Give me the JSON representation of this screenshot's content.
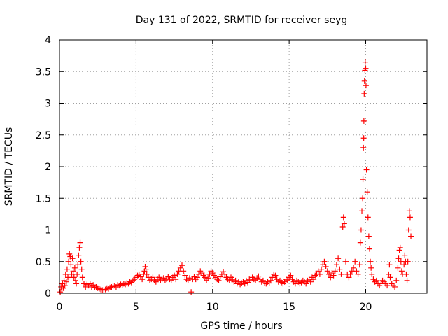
{
  "chart_data": {
    "type": "scatter",
    "title": "Day 131 of 2022, SRMTID for receiver seyg",
    "xlabel": "GPS time / hours",
    "ylabel": "SRMTID / TECUs",
    "xlim": [
      0,
      24
    ],
    "ylim": [
      0,
      4
    ],
    "x_ticks": [
      0,
      5,
      10,
      15,
      20
    ],
    "y_ticks": [
      0,
      0.5,
      1,
      1.5,
      2,
      2.5,
      3,
      3.5,
      4
    ],
    "x_tick_labels": [
      "0",
      "5",
      "10",
      "15",
      "20"
    ],
    "y_tick_labels": [
      "0",
      "0.5",
      "1",
      "1.5",
      "2",
      "2.5",
      "3",
      "3.5",
      "4"
    ],
    "grid": true,
    "marker": "+",
    "color": "#ff0000",
    "series": [
      {
        "name": "SRMTID",
        "points": [
          [
            0.05,
            0.02
          ],
          [
            0.1,
            0.1
          ],
          [
            0.15,
            0.05
          ],
          [
            0.2,
            0.15
          ],
          [
            0.25,
            0.08
          ],
          [
            0.3,
            0.2
          ],
          [
            0.35,
            0.12
          ],
          [
            0.4,
            0.3
          ],
          [
            0.45,
            0.18
          ],
          [
            0.5,
            0.38
          ],
          [
            0.55,
            0.25
          ],
          [
            0.6,
            0.5
          ],
          [
            0.65,
            0.62
          ],
          [
            0.7,
            0.58
          ],
          [
            0.75,
            0.45
          ],
          [
            0.8,
            0.3
          ],
          [
            0.85,
            0.55
          ],
          [
            0.9,
            0.35
          ],
          [
            0.95,
            0.25
          ],
          [
            1.0,
            0.4
          ],
          [
            1.05,
            0.2
          ],
          [
            1.1,
            0.15
          ],
          [
            1.15,
            0.3
          ],
          [
            1.2,
            0.45
          ],
          [
            1.25,
            0.6
          ],
          [
            1.3,
            0.72
          ],
          [
            1.35,
            0.8
          ],
          [
            1.4,
            0.5
          ],
          [
            1.45,
            0.38
          ],
          [
            1.5,
            0.25
          ],
          [
            1.6,
            0.15
          ],
          [
            1.7,
            0.1
          ],
          [
            1.8,
            0.14
          ],
          [
            1.9,
            0.12
          ],
          [
            2.0,
            0.15
          ],
          [
            2.1,
            0.1
          ],
          [
            2.2,
            0.13
          ],
          [
            2.3,
            0.09
          ],
          [
            2.4,
            0.1
          ],
          [
            2.5,
            0.08
          ],
          [
            2.6,
            0.07
          ],
          [
            2.7,
            0.06
          ],
          [
            2.8,
            0.05
          ],
          [
            2.9,
            0.05
          ],
          [
            3.0,
            0.06
          ],
          [
            3.1,
            0.08
          ],
          [
            3.2,
            0.07
          ],
          [
            3.3,
            0.09
          ],
          [
            3.4,
            0.1
          ],
          [
            3.5,
            0.11
          ],
          [
            3.6,
            0.12
          ],
          [
            3.7,
            0.1
          ],
          [
            3.8,
            0.13
          ],
          [
            3.9,
            0.12
          ],
          [
            4.0,
            0.14
          ],
          [
            4.1,
            0.13
          ],
          [
            4.2,
            0.15
          ],
          [
            4.3,
            0.14
          ],
          [
            4.4,
            0.16
          ],
          [
            4.5,
            0.15
          ],
          [
            4.6,
            0.18
          ],
          [
            4.7,
            0.17
          ],
          [
            4.8,
            0.2
          ],
          [
            4.9,
            0.22
          ],
          [
            5.0,
            0.25
          ],
          [
            5.1,
            0.28
          ],
          [
            5.2,
            0.3
          ],
          [
            5.3,
            0.26
          ],
          [
            5.4,
            0.22
          ],
          [
            5.5,
            0.3
          ],
          [
            5.55,
            0.35
          ],
          [
            5.6,
            0.42
          ],
          [
            5.65,
            0.38
          ],
          [
            5.7,
            0.3
          ],
          [
            5.8,
            0.25
          ],
          [
            5.9,
            0.2
          ],
          [
            6.0,
            0.22
          ],
          [
            6.1,
            0.25
          ],
          [
            6.2,
            0.2
          ],
          [
            6.3,
            0.18
          ],
          [
            6.4,
            0.22
          ],
          [
            6.5,
            0.25
          ],
          [
            6.6,
            0.2
          ],
          [
            6.7,
            0.22
          ],
          [
            6.8,
            0.24
          ],
          [
            6.9,
            0.2
          ],
          [
            7.0,
            0.22
          ],
          [
            7.1,
            0.26
          ],
          [
            7.2,
            0.22
          ],
          [
            7.3,
            0.2
          ],
          [
            7.4,
            0.25
          ],
          [
            7.5,
            0.28
          ],
          [
            7.6,
            0.22
          ],
          [
            7.7,
            0.3
          ],
          [
            7.8,
            0.35
          ],
          [
            7.9,
            0.4
          ],
          [
            8.0,
            0.44
          ],
          [
            8.1,
            0.35
          ],
          [
            8.2,
            0.28
          ],
          [
            8.3,
            0.22
          ],
          [
            8.4,
            0.2
          ],
          [
            8.5,
            0.24
          ],
          [
            8.6,
            0.02
          ],
          [
            8.7,
            0.22
          ],
          [
            8.8,
            0.26
          ],
          [
            8.9,
            0.22
          ],
          [
            9.0,
            0.25
          ],
          [
            9.1,
            0.3
          ],
          [
            9.2,
            0.35
          ],
          [
            9.3,
            0.32
          ],
          [
            9.4,
            0.28
          ],
          [
            9.5,
            0.25
          ],
          [
            9.6,
            0.2
          ],
          [
            9.7,
            0.24
          ],
          [
            9.8,
            0.3
          ],
          [
            9.9,
            0.35
          ],
          [
            10.0,
            0.32
          ],
          [
            10.1,
            0.28
          ],
          [
            10.2,
            0.25
          ],
          [
            10.3,
            0.22
          ],
          [
            10.4,
            0.2
          ],
          [
            10.5,
            0.26
          ],
          [
            10.6,
            0.3
          ],
          [
            10.7,
            0.34
          ],
          [
            10.8,
            0.3
          ],
          [
            10.9,
            0.25
          ],
          [
            11.0,
            0.22
          ],
          [
            11.1,
            0.2
          ],
          [
            11.2,
            0.25
          ],
          [
            11.3,
            0.22
          ],
          [
            11.4,
            0.18
          ],
          [
            11.5,
            0.2
          ],
          [
            11.6,
            0.15
          ],
          [
            11.7,
            0.18
          ],
          [
            11.8,
            0.14
          ],
          [
            11.9,
            0.16
          ],
          [
            12.0,
            0.18
          ],
          [
            12.1,
            0.15
          ],
          [
            12.2,
            0.2
          ],
          [
            12.3,
            0.17
          ],
          [
            12.4,
            0.22
          ],
          [
            12.5,
            0.2
          ],
          [
            12.6,
            0.25
          ],
          [
            12.7,
            0.22
          ],
          [
            12.8,
            0.2
          ],
          [
            12.9,
            0.24
          ],
          [
            13.0,
            0.27
          ],
          [
            13.1,
            0.22
          ],
          [
            13.2,
            0.18
          ],
          [
            13.3,
            0.2
          ],
          [
            13.4,
            0.16
          ],
          [
            13.5,
            0.15
          ],
          [
            13.6,
            0.18
          ],
          [
            13.7,
            0.16
          ],
          [
            13.8,
            0.2
          ],
          [
            13.9,
            0.25
          ],
          [
            14.0,
            0.3
          ],
          [
            14.1,
            0.28
          ],
          [
            14.2,
            0.22
          ],
          [
            14.3,
            0.18
          ],
          [
            14.4,
            0.2
          ],
          [
            14.5,
            0.17
          ],
          [
            14.6,
            0.15
          ],
          [
            14.7,
            0.18
          ],
          [
            14.8,
            0.22
          ],
          [
            14.9,
            0.2
          ],
          [
            15.0,
            0.25
          ],
          [
            15.1,
            0.28
          ],
          [
            15.2,
            0.22
          ],
          [
            15.3,
            0.18
          ],
          [
            15.4,
            0.15
          ],
          [
            15.5,
            0.2
          ],
          [
            15.6,
            0.18
          ],
          [
            15.7,
            0.15
          ],
          [
            15.8,
            0.17
          ],
          [
            15.9,
            0.2
          ],
          [
            16.0,
            0.18
          ],
          [
            16.1,
            0.15
          ],
          [
            16.2,
            0.2
          ],
          [
            16.3,
            0.22
          ],
          [
            16.4,
            0.18
          ],
          [
            16.5,
            0.25
          ],
          [
            16.6,
            0.22
          ],
          [
            16.7,
            0.28
          ],
          [
            16.8,
            0.3
          ],
          [
            16.9,
            0.35
          ],
          [
            17.0,
            0.3
          ],
          [
            17.1,
            0.38
          ],
          [
            17.2,
            0.45
          ],
          [
            17.3,
            0.5
          ],
          [
            17.4,
            0.42
          ],
          [
            17.5,
            0.35
          ],
          [
            17.6,
            0.3
          ],
          [
            17.7,
            0.25
          ],
          [
            17.8,
            0.32
          ],
          [
            17.9,
            0.28
          ],
          [
            18.0,
            0.35
          ],
          [
            18.1,
            0.45
          ],
          [
            18.2,
            0.55
          ],
          [
            18.3,
            0.38
          ],
          [
            18.4,
            0.3
          ],
          [
            18.5,
            1.05
          ],
          [
            18.55,
            1.2
          ],
          [
            18.6,
            1.1
          ],
          [
            18.7,
            0.5
          ],
          [
            18.8,
            0.3
          ],
          [
            18.9,
            0.25
          ],
          [
            19.0,
            0.3
          ],
          [
            19.1,
            0.35
          ],
          [
            19.2,
            0.4
          ],
          [
            19.3,
            0.5
          ],
          [
            19.4,
            0.35
          ],
          [
            19.5,
            0.3
          ],
          [
            19.6,
            0.45
          ],
          [
            19.65,
            0.8
          ],
          [
            19.7,
            1.0
          ],
          [
            19.75,
            1.3
          ],
          [
            19.8,
            1.5
          ],
          [
            19.82,
            1.8
          ],
          [
            19.85,
            2.3
          ],
          [
            19.87,
            2.45
          ],
          [
            19.88,
            2.72
          ],
          [
            19.9,
            3.15
          ],
          [
            19.92,
            3.35
          ],
          [
            19.95,
            3.52
          ],
          [
            19.97,
            3.65
          ],
          [
            20.0,
            3.55
          ],
          [
            20.02,
            3.28
          ],
          [
            20.05,
            1.95
          ],
          [
            20.1,
            1.6
          ],
          [
            20.15,
            1.2
          ],
          [
            20.2,
            0.9
          ],
          [
            20.25,
            0.7
          ],
          [
            20.3,
            0.5
          ],
          [
            20.35,
            0.4
          ],
          [
            20.4,
            0.3
          ],
          [
            20.5,
            0.22
          ],
          [
            20.6,
            0.18
          ],
          [
            20.7,
            0.2
          ],
          [
            20.8,
            0.15
          ],
          [
            20.9,
            0.12
          ],
          [
            21.0,
            0.15
          ],
          [
            21.1,
            0.2
          ],
          [
            21.2,
            0.18
          ],
          [
            21.3,
            0.15
          ],
          [
            21.4,
            0.12
          ],
          [
            21.5,
            0.3
          ],
          [
            21.55,
            0.45
          ],
          [
            21.6,
            0.25
          ],
          [
            21.7,
            0.15
          ],
          [
            21.8,
            0.12
          ],
          [
            21.9,
            0.1
          ],
          [
            22.0,
            0.2
          ],
          [
            22.1,
            0.4
          ],
          [
            22.15,
            0.55
          ],
          [
            22.2,
            0.68
          ],
          [
            22.25,
            0.72
          ],
          [
            22.3,
            0.5
          ],
          [
            22.35,
            0.35
          ],
          [
            22.4,
            0.3
          ],
          [
            22.5,
            0.45
          ],
          [
            22.55,
            0.6
          ],
          [
            22.6,
            0.5
          ],
          [
            22.65,
            0.3
          ],
          [
            22.7,
            0.2
          ],
          [
            22.75,
            0.5
          ],
          [
            22.8,
            1.0
          ],
          [
            22.85,
            1.3
          ],
          [
            22.9,
            1.2
          ],
          [
            22.95,
            0.9
          ]
        ]
      }
    ]
  }
}
